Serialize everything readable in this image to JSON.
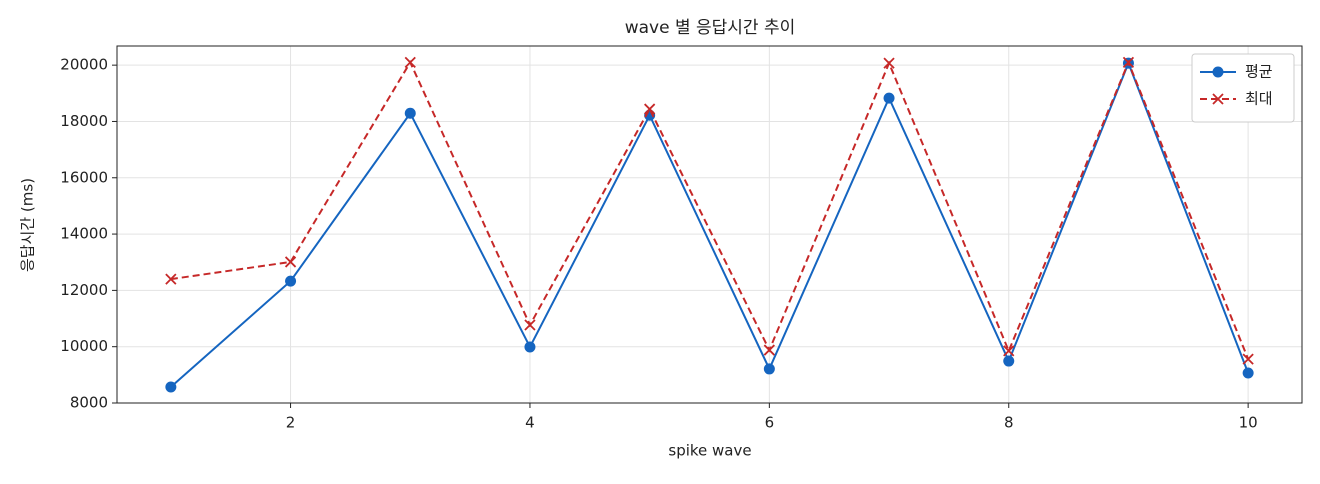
{
  "chart_data": {
    "type": "line",
    "title": "wave 별 응답시간 추이",
    "xlabel": "spike wave",
    "ylabel": "응답시간 (ms)",
    "x": [
      1,
      2,
      3,
      4,
      5,
      6,
      7,
      8,
      9,
      10
    ],
    "series": [
      {
        "name": "평균",
        "color": "#1565c0",
        "marker": "circle",
        "dashed": false,
        "values": [
          8570,
          12330,
          18290,
          9990,
          18220,
          9210,
          18830,
          9490,
          20070,
          9065
        ]
      },
      {
        "name": "최대",
        "color": "#c62828",
        "marker": "x",
        "dashed": true,
        "values": [
          12400,
          13010,
          20100,
          10770,
          18440,
          9880,
          20070,
          9850,
          20100,
          9560
        ]
      }
    ],
    "xlim": [
      0.55,
      10.45
    ],
    "xticks": [
      2,
      4,
      6,
      8,
      10
    ],
    "ylim": [
      8000,
      20680
    ],
    "yticks": [
      8000,
      10000,
      12000,
      14000,
      16000,
      18000,
      20000
    ],
    "grid": true,
    "legend": "upper-right"
  }
}
